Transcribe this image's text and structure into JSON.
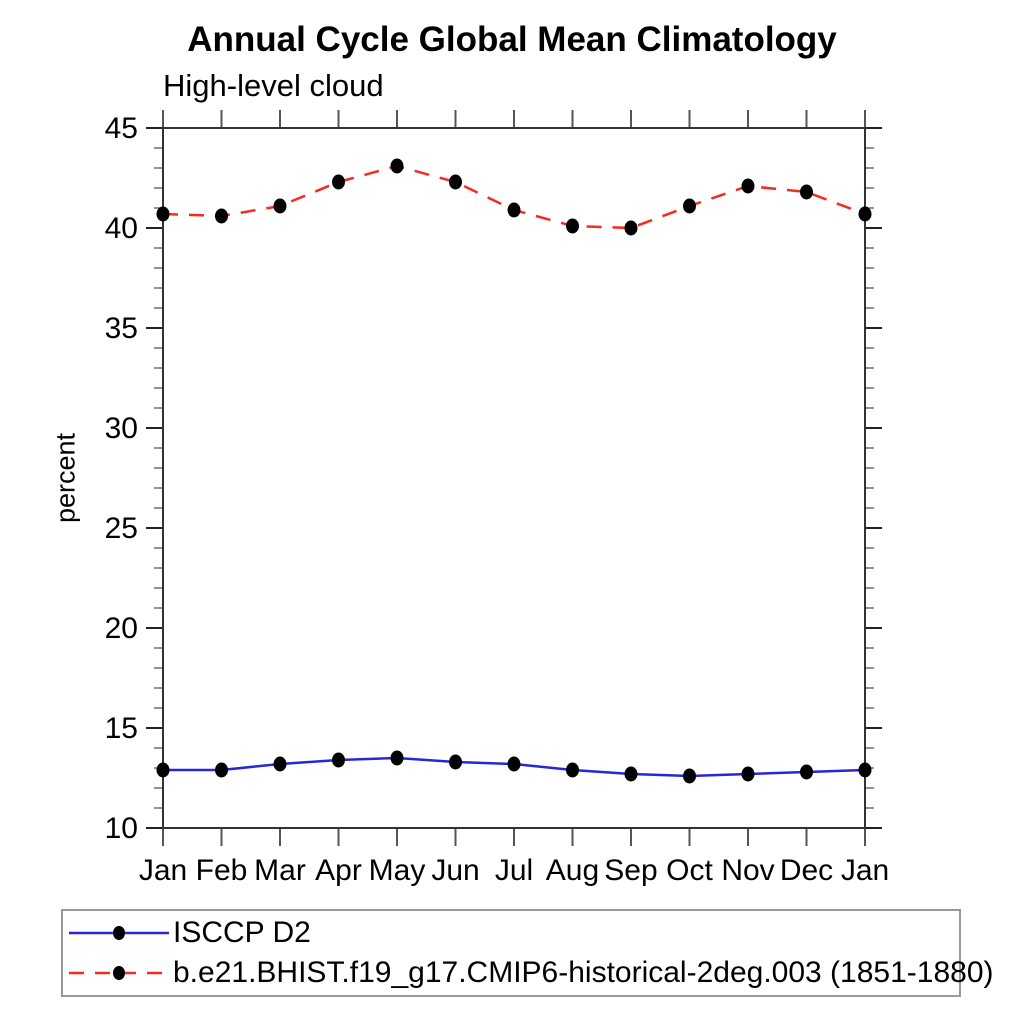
{
  "header": {
    "title": "Annual Cycle Global Mean Climatology",
    "subtitle": "High-level cloud"
  },
  "chart_data": {
    "type": "line",
    "title": "Annual Cycle Global Mean Climatology",
    "subtitle": "High-level cloud",
    "xlabel": "",
    "ylabel": "percent",
    "categories": [
      "Jan",
      "Feb",
      "Mar",
      "Apr",
      "May",
      "Jun",
      "Jul",
      "Aug",
      "Sep",
      "Oct",
      "Nov",
      "Dec",
      "Jan"
    ],
    "ylim": [
      10,
      45
    ],
    "ytick_major": [
      10,
      15,
      20,
      25,
      30,
      35,
      40,
      45
    ],
    "ytick_minor_step": 1,
    "grid": false,
    "legend_position": "bottom-left-box",
    "series": [
      {
        "name": "ISCCP D2",
        "line_style": "solid",
        "color": "#2727d8",
        "marker": "black-dot",
        "marker_color": "#000000",
        "values": [
          12.9,
          12.9,
          13.2,
          13.4,
          13.5,
          13.3,
          13.2,
          12.9,
          12.7,
          12.6,
          12.7,
          12.8,
          12.9
        ]
      },
      {
        "name": "b.e21.BHIST.f19_g17.CMIP6-historical-2deg.003 (1851-1880)",
        "line_style": "dashed",
        "color": "#f52a21",
        "marker": "black-dot",
        "marker_color": "#000000",
        "values": [
          40.7,
          40.6,
          41.1,
          42.3,
          43.1,
          42.3,
          40.9,
          40.1,
          40.0,
          41.1,
          42.1,
          41.8,
          40.7
        ]
      }
    ]
  }
}
